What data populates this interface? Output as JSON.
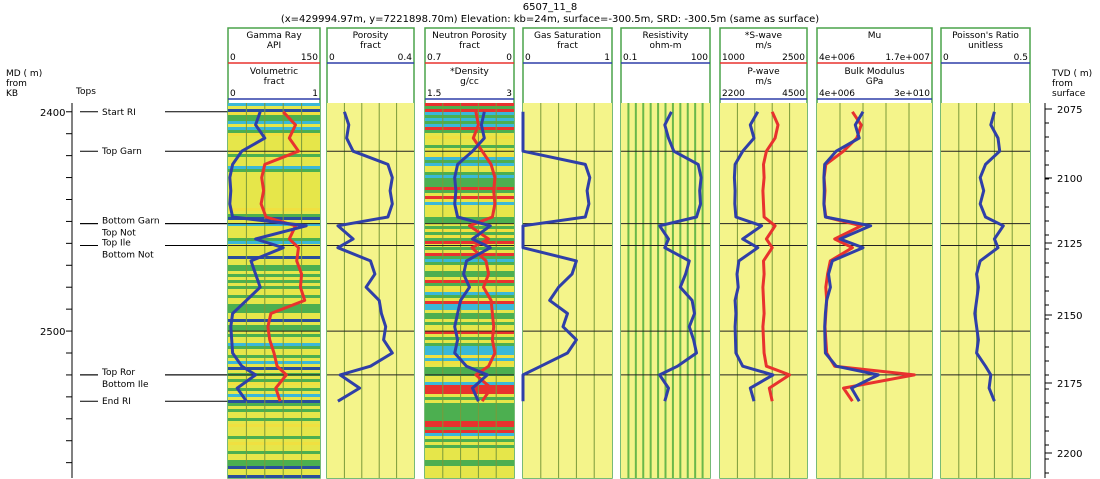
{
  "header": {
    "well_name": "6507_11_8",
    "location": "(x=429994.97m, y=7221898.70m) Elevation: kb=24m, surface=-300.5m, SRD: -300.5m (same as surface)"
  },
  "left_axis": {
    "title_lines": [
      "MD ( m)",
      "from",
      "KB"
    ],
    "range": [
      2396,
      2567
    ],
    "tick_labels": [
      "2400",
      "2500"
    ],
    "tick_values": [
      2400,
      2500
    ]
  },
  "tops": {
    "label": "Tops",
    "markers": [
      {
        "name": "Start RI",
        "md": 2400
      },
      {
        "name": "Top Garn",
        "md": 2418
      },
      {
        "name": "Bottom Garn",
        "md": 2451
      },
      {
        "name": "Top Not",
        "md": 2451
      },
      {
        "name": "Top Ile",
        "md": 2461
      },
      {
        "name": "Bottom Not",
        "md": 2461
      },
      {
        "name": "Top Ror",
        "md": 2520
      },
      {
        "name": "Bottom Ile",
        "md": 2520
      },
      {
        "name": "End RI",
        "md": 2532
      }
    ]
  },
  "right_axis": {
    "title_lines": [
      "TVD ( m)",
      "from",
      "surface"
    ],
    "tick_labels": [
      "2075",
      "2100",
      "2125",
      "2150",
      "2175",
      "2200"
    ]
  },
  "tracks": [
    {
      "id": "t1",
      "fill": "lithology",
      "headers": [
        {
          "name": "Gamma Ray",
          "unit": "API",
          "min": "0",
          "max": "150",
          "color": "#e8322e"
        },
        {
          "name": "Volumetric",
          "unit": "fract",
          "min": "0",
          "max": "1",
          "color": "#2f3fa8"
        }
      ]
    },
    {
      "id": "t2",
      "fill": "yellow",
      "headers": [
        {
          "name": "Porosity",
          "unit": "fract",
          "min": "0",
          "max": "0.4",
          "color": "#2f3fa8"
        }
      ]
    },
    {
      "id": "t3",
      "fill": "lithology2",
      "headers": [
        {
          "name": "Neutron Porosity",
          "unit": "fract",
          "min": "0.7",
          "max": "0",
          "color": "#e8322e"
        },
        {
          "name": "*Density",
          "unit": "g/cc",
          "min": "1.5",
          "max": "3",
          "color": "#2f3fa8"
        }
      ]
    },
    {
      "id": "t4",
      "fill": "yellow",
      "headers": [
        {
          "name": "Gas Saturation",
          "unit": "fract",
          "min": "0",
          "max": "1",
          "color": "#2f3fa8"
        }
      ]
    },
    {
      "id": "t5",
      "fill": "yellow-log",
      "headers": [
        {
          "name": "Resistivity",
          "unit": "ohm-m",
          "min": "0.1",
          "max": "100",
          "color": "#2f3fa8"
        }
      ]
    },
    {
      "id": "t6",
      "fill": "yellow",
      "headers": [
        {
          "name": "*S-wave",
          "unit": "m/s",
          "min": "1000",
          "max": "2500",
          "color": "#e8322e"
        },
        {
          "name": "P-wave",
          "unit": "m/s",
          "min": "2200",
          "max": "4500",
          "color": "#2f3fa8"
        }
      ]
    },
    {
      "id": "t7",
      "fill": "yellow",
      "headers": [
        {
          "name": "Mu",
          "unit": "",
          "min": "4e+006",
          "max": "1.7e+007",
          "color": "#e8322e"
        },
        {
          "name": "Bulk Modulus",
          "unit": "GPa",
          "min": "4e+006",
          "max": "3e+010",
          "color": "#2f3fa8"
        }
      ]
    },
    {
      "id": "t8",
      "fill": "yellow",
      "headers": [
        {
          "name": "Poisson's Ratio",
          "unit": "unitless",
          "min": "0",
          "max": "0.5",
          "color": "#2f3fa8"
        }
      ]
    }
  ],
  "chart_data": {
    "type": "line",
    "depth_unit": "MD (m)",
    "depth_range": [
      2400,
      2532
    ],
    "curves": [
      {
        "track": "t1",
        "name": "Gamma Ray",
        "color": "#e8322e",
        "md": [
          2400,
          2406,
          2412,
          2418,
          2424,
          2430,
          2436,
          2442,
          2448,
          2452,
          2458,
          2462,
          2468,
          2474,
          2480,
          2486,
          2492,
          2498,
          2504,
          2510,
          2516,
          2520,
          2526,
          2532
        ],
        "value": [
          90,
          110,
          100,
          115,
          60,
          55,
          58,
          54,
          62,
          110,
          100,
          115,
          112,
          120,
          118,
          125,
          70,
          65,
          68,
          75,
          80,
          95,
          78,
          85
        ]
      },
      {
        "track": "t1",
        "name": "Volumetric",
        "color": "#2f3fa8",
        "md": [
          2400,
          2406,
          2412,
          2418,
          2424,
          2430,
          2436,
          2442,
          2448,
          2452,
          2458,
          2462,
          2468,
          2474,
          2480,
          2486,
          2492,
          2498,
          2504,
          2510,
          2516,
          2520,
          2526,
          2532
        ],
        "value": [
          0.35,
          0.3,
          0.4,
          0.15,
          0.05,
          0.02,
          0.03,
          0.02,
          0.05,
          0.85,
          0.3,
          0.6,
          0.25,
          0.3,
          0.35,
          0.2,
          0.05,
          0.03,
          0.04,
          0.05,
          0.15,
          0.3,
          0.1,
          0.2
        ]
      },
      {
        "track": "t2",
        "name": "Porosity",
        "color": "#2f3fa8",
        "md": [
          2400,
          2406,
          2412,
          2418,
          2424,
          2430,
          2436,
          2442,
          2448,
          2452,
          2458,
          2462,
          2468,
          2474,
          2480,
          2486,
          2492,
          2498,
          2504,
          2510,
          2516,
          2520,
          2526,
          2532
        ],
        "value": [
          0.08,
          0.1,
          0.09,
          0.12,
          0.28,
          0.3,
          0.29,
          0.3,
          0.28,
          0.05,
          0.12,
          0.05,
          0.2,
          0.22,
          0.18,
          0.24,
          0.25,
          0.27,
          0.26,
          0.3,
          0.2,
          0.06,
          0.15,
          0.05
        ]
      },
      {
        "track": "t3",
        "name": "Neutron Porosity",
        "color": "#e8322e",
        "md": [
          2400,
          2406,
          2412,
          2418,
          2424,
          2430,
          2436,
          2442,
          2448,
          2452,
          2458,
          2462,
          2468,
          2474,
          2480,
          2486,
          2492,
          2498,
          2504,
          2510,
          2516,
          2520,
          2526,
          2532
        ],
        "value": [
          0.3,
          0.28,
          0.32,
          0.25,
          0.18,
          0.15,
          0.16,
          0.15,
          0.17,
          0.35,
          0.2,
          0.33,
          0.22,
          0.2,
          0.24,
          0.18,
          0.17,
          0.16,
          0.17,
          0.15,
          0.2,
          0.3,
          0.18,
          0.25
        ]
      },
      {
        "track": "t3",
        "name": "*Density",
        "color": "#2f3fa8",
        "md": [
          2400,
          2406,
          2412,
          2418,
          2424,
          2430,
          2436,
          2442,
          2448,
          2452,
          2458,
          2462,
          2468,
          2474,
          2480,
          2486,
          2492,
          2498,
          2504,
          2510,
          2516,
          2520,
          2526,
          2532
        ],
        "value": [
          2.5,
          2.45,
          2.5,
          2.3,
          2.05,
          2.0,
          2.02,
          2.0,
          2.05,
          2.6,
          2.3,
          2.6,
          2.2,
          2.15,
          2.25,
          2.1,
          2.05,
          2.0,
          2.05,
          2.0,
          2.2,
          2.55,
          2.3,
          2.4
        ]
      },
      {
        "track": "t4",
        "name": "Gas Saturation",
        "color": "#2f3fa8",
        "md": [
          2400,
          2406,
          2412,
          2418,
          2424,
          2430,
          2436,
          2442,
          2448,
          2452,
          2458,
          2462,
          2468,
          2474,
          2480,
          2486,
          2492,
          2498,
          2504,
          2510,
          2516,
          2520,
          2526,
          2532
        ],
        "value": [
          0.0,
          0.0,
          0.0,
          0.0,
          0.7,
          0.75,
          0.72,
          0.74,
          0.7,
          0.0,
          0.0,
          0.0,
          0.6,
          0.55,
          0.4,
          0.3,
          0.5,
          0.45,
          0.6,
          0.5,
          0.2,
          0.0,
          0.0,
          0.0
        ]
      },
      {
        "track": "t5",
        "name": "Resistivity",
        "color": "#2f3fa8",
        "md": [
          2400,
          2406,
          2412,
          2418,
          2424,
          2430,
          2436,
          2442,
          2448,
          2452,
          2458,
          2462,
          2468,
          2474,
          2480,
          2486,
          2492,
          2498,
          2504,
          2510,
          2516,
          2520,
          2526,
          2532
        ],
        "value": [
          5,
          3,
          4,
          6,
          40,
          50,
          45,
          48,
          35,
          2,
          4,
          3,
          20,
          15,
          10,
          25,
          30,
          20,
          28,
          35,
          8,
          2,
          4,
          3
        ]
      },
      {
        "track": "t6",
        "name": "*S-wave",
        "color": "#e8322e",
        "md": [
          2400,
          2406,
          2412,
          2418,
          2424,
          2430,
          2436,
          2442,
          2448,
          2452,
          2458,
          2462,
          2468,
          2474,
          2480,
          2486,
          2492,
          2498,
          2504,
          2510,
          2516,
          2520,
          2526,
          2532
        ],
        "value": [
          1900,
          2000,
          1950,
          1800,
          1750,
          1760,
          1740,
          1750,
          1760,
          1950,
          1800,
          1900,
          1750,
          1760,
          1740,
          1750,
          1760,
          1740,
          1750,
          1760,
          1800,
          2200,
          1850,
          1900
        ]
      },
      {
        "track": "t6",
        "name": "P-wave",
        "color": "#2f3fa8",
        "md": [
          2400,
          2406,
          2412,
          2418,
          2424,
          2430,
          2436,
          2442,
          2448,
          2452,
          2458,
          2462,
          2468,
          2474,
          2480,
          2486,
          2492,
          2498,
          2504,
          2510,
          2516,
          2520,
          2526,
          2532
        ],
        "value": [
          3200,
          3000,
          3100,
          2800,
          2600,
          2580,
          2600,
          2590,
          2620,
          3300,
          2800,
          3200,
          2700,
          2650,
          2680,
          2600,
          2620,
          2600,
          2610,
          2620,
          2800,
          3600,
          3000,
          3100
        ]
      },
      {
        "track": "t7",
        "name": "Mu",
        "color": "#e8322e",
        "md": [
          2400,
          2406,
          2412,
          2418,
          2424,
          2430,
          2436,
          2442,
          2448,
          2452,
          2458,
          2462,
          2468,
          2474,
          2480,
          2486,
          2492,
          2498,
          2504,
          2510,
          2516,
          2520,
          2526,
          2532
        ],
        "value": [
          8000000,
          9000000,
          8500000,
          7000000,
          5000000,
          4800000,
          4900000,
          4800000,
          5000000,
          9000000,
          6000000,
          8000000,
          5500000,
          5200000,
          5000000,
          5100000,
          5000000,
          4900000,
          5000000,
          5100000,
          6000000,
          15000000,
          7000000,
          8000000
        ]
      },
      {
        "track": "t7",
        "name": "Bulk Modulus",
        "color": "#2f3fa8",
        "md": [
          2400,
          2406,
          2412,
          2418,
          2424,
          2430,
          2436,
          2442,
          2448,
          2452,
          2458,
          2462,
          2468,
          2474,
          2480,
          2486,
          2492,
          2498,
          2504,
          2510,
          2516,
          2520,
          2526,
          2532
        ],
        "value": [
          12000000000,
          10000000000,
          11000000000,
          5000000000,
          2000000000,
          1800000000,
          1900000000,
          1800000000,
          2200000000,
          14000000000,
          6000000000,
          12000000000,
          4000000000,
          3000000000,
          3500000000,
          2500000000,
          2200000000,
          2000000000,
          2100000000,
          2200000000,
          5000000000,
          16000000000,
          9000000000,
          11000000000
        ]
      },
      {
        "track": "t8",
        "name": "Poisson's Ratio",
        "color": "#2f3fa8",
        "md": [
          2400,
          2406,
          2412,
          2418,
          2424,
          2430,
          2436,
          2442,
          2448,
          2452,
          2458,
          2462,
          2468,
          2474,
          2480,
          2486,
          2492,
          2498,
          2504,
          2510,
          2516,
          2520,
          2526,
          2532
        ],
        "value": [
          0.3,
          0.28,
          0.32,
          0.33,
          0.25,
          0.22,
          0.24,
          0.22,
          0.25,
          0.35,
          0.3,
          0.32,
          0.22,
          0.2,
          0.21,
          0.2,
          0.19,
          0.2,
          0.21,
          0.2,
          0.25,
          0.28,
          0.27,
          0.3
        ]
      }
    ]
  }
}
